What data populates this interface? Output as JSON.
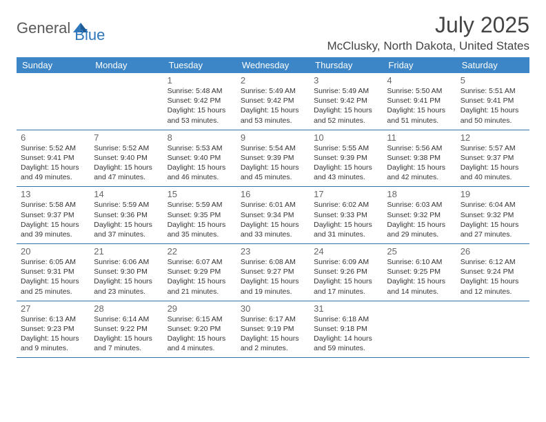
{
  "logo": {
    "text1": "General",
    "text2": "Blue"
  },
  "title": "July 2025",
  "location": "McClusky, North Dakota, United States",
  "colors": {
    "header_bg": "#3c86c7",
    "header_text": "#ffffff",
    "row_border": "#2f6ea8",
    "day_number": "#666666",
    "body_text": "#333333",
    "logo_gray": "#59595b",
    "logo_blue": "#2f77bb",
    "background": "#ffffff"
  },
  "day_headers": [
    "Sunday",
    "Monday",
    "Tuesday",
    "Wednesday",
    "Thursday",
    "Friday",
    "Saturday"
  ],
  "weeks": [
    [
      {
        "num": "",
        "lines": []
      },
      {
        "num": "",
        "lines": []
      },
      {
        "num": "1",
        "lines": [
          "Sunrise: 5:48 AM",
          "Sunset: 9:42 PM",
          "Daylight: 15 hours",
          "and 53 minutes."
        ]
      },
      {
        "num": "2",
        "lines": [
          "Sunrise: 5:49 AM",
          "Sunset: 9:42 PM",
          "Daylight: 15 hours",
          "and 53 minutes."
        ]
      },
      {
        "num": "3",
        "lines": [
          "Sunrise: 5:49 AM",
          "Sunset: 9:42 PM",
          "Daylight: 15 hours",
          "and 52 minutes."
        ]
      },
      {
        "num": "4",
        "lines": [
          "Sunrise: 5:50 AM",
          "Sunset: 9:41 PM",
          "Daylight: 15 hours",
          "and 51 minutes."
        ]
      },
      {
        "num": "5",
        "lines": [
          "Sunrise: 5:51 AM",
          "Sunset: 9:41 PM",
          "Daylight: 15 hours",
          "and 50 minutes."
        ]
      }
    ],
    [
      {
        "num": "6",
        "lines": [
          "Sunrise: 5:52 AM",
          "Sunset: 9:41 PM",
          "Daylight: 15 hours",
          "and 49 minutes."
        ]
      },
      {
        "num": "7",
        "lines": [
          "Sunrise: 5:52 AM",
          "Sunset: 9:40 PM",
          "Daylight: 15 hours",
          "and 47 minutes."
        ]
      },
      {
        "num": "8",
        "lines": [
          "Sunrise: 5:53 AM",
          "Sunset: 9:40 PM",
          "Daylight: 15 hours",
          "and 46 minutes."
        ]
      },
      {
        "num": "9",
        "lines": [
          "Sunrise: 5:54 AM",
          "Sunset: 9:39 PM",
          "Daylight: 15 hours",
          "and 45 minutes."
        ]
      },
      {
        "num": "10",
        "lines": [
          "Sunrise: 5:55 AM",
          "Sunset: 9:39 PM",
          "Daylight: 15 hours",
          "and 43 minutes."
        ]
      },
      {
        "num": "11",
        "lines": [
          "Sunrise: 5:56 AM",
          "Sunset: 9:38 PM",
          "Daylight: 15 hours",
          "and 42 minutes."
        ]
      },
      {
        "num": "12",
        "lines": [
          "Sunrise: 5:57 AM",
          "Sunset: 9:37 PM",
          "Daylight: 15 hours",
          "and 40 minutes."
        ]
      }
    ],
    [
      {
        "num": "13",
        "lines": [
          "Sunrise: 5:58 AM",
          "Sunset: 9:37 PM",
          "Daylight: 15 hours",
          "and 39 minutes."
        ]
      },
      {
        "num": "14",
        "lines": [
          "Sunrise: 5:59 AM",
          "Sunset: 9:36 PM",
          "Daylight: 15 hours",
          "and 37 minutes."
        ]
      },
      {
        "num": "15",
        "lines": [
          "Sunrise: 5:59 AM",
          "Sunset: 9:35 PM",
          "Daylight: 15 hours",
          "and 35 minutes."
        ]
      },
      {
        "num": "16",
        "lines": [
          "Sunrise: 6:01 AM",
          "Sunset: 9:34 PM",
          "Daylight: 15 hours",
          "and 33 minutes."
        ]
      },
      {
        "num": "17",
        "lines": [
          "Sunrise: 6:02 AM",
          "Sunset: 9:33 PM",
          "Daylight: 15 hours",
          "and 31 minutes."
        ]
      },
      {
        "num": "18",
        "lines": [
          "Sunrise: 6:03 AM",
          "Sunset: 9:32 PM",
          "Daylight: 15 hours",
          "and 29 minutes."
        ]
      },
      {
        "num": "19",
        "lines": [
          "Sunrise: 6:04 AM",
          "Sunset: 9:32 PM",
          "Daylight: 15 hours",
          "and 27 minutes."
        ]
      }
    ],
    [
      {
        "num": "20",
        "lines": [
          "Sunrise: 6:05 AM",
          "Sunset: 9:31 PM",
          "Daylight: 15 hours",
          "and 25 minutes."
        ]
      },
      {
        "num": "21",
        "lines": [
          "Sunrise: 6:06 AM",
          "Sunset: 9:30 PM",
          "Daylight: 15 hours",
          "and 23 minutes."
        ]
      },
      {
        "num": "22",
        "lines": [
          "Sunrise: 6:07 AM",
          "Sunset: 9:29 PM",
          "Daylight: 15 hours",
          "and 21 minutes."
        ]
      },
      {
        "num": "23",
        "lines": [
          "Sunrise: 6:08 AM",
          "Sunset: 9:27 PM",
          "Daylight: 15 hours",
          "and 19 minutes."
        ]
      },
      {
        "num": "24",
        "lines": [
          "Sunrise: 6:09 AM",
          "Sunset: 9:26 PM",
          "Daylight: 15 hours",
          "and 17 minutes."
        ]
      },
      {
        "num": "25",
        "lines": [
          "Sunrise: 6:10 AM",
          "Sunset: 9:25 PM",
          "Daylight: 15 hours",
          "and 14 minutes."
        ]
      },
      {
        "num": "26",
        "lines": [
          "Sunrise: 6:12 AM",
          "Sunset: 9:24 PM",
          "Daylight: 15 hours",
          "and 12 minutes."
        ]
      }
    ],
    [
      {
        "num": "27",
        "lines": [
          "Sunrise: 6:13 AM",
          "Sunset: 9:23 PM",
          "Daylight: 15 hours",
          "and 9 minutes."
        ]
      },
      {
        "num": "28",
        "lines": [
          "Sunrise: 6:14 AM",
          "Sunset: 9:22 PM",
          "Daylight: 15 hours",
          "and 7 minutes."
        ]
      },
      {
        "num": "29",
        "lines": [
          "Sunrise: 6:15 AM",
          "Sunset: 9:20 PM",
          "Daylight: 15 hours",
          "and 4 minutes."
        ]
      },
      {
        "num": "30",
        "lines": [
          "Sunrise: 6:17 AM",
          "Sunset: 9:19 PM",
          "Daylight: 15 hours",
          "and 2 minutes."
        ]
      },
      {
        "num": "31",
        "lines": [
          "Sunrise: 6:18 AM",
          "Sunset: 9:18 PM",
          "Daylight: 14 hours",
          "and 59 minutes."
        ]
      },
      {
        "num": "",
        "lines": []
      },
      {
        "num": "",
        "lines": []
      }
    ]
  ]
}
